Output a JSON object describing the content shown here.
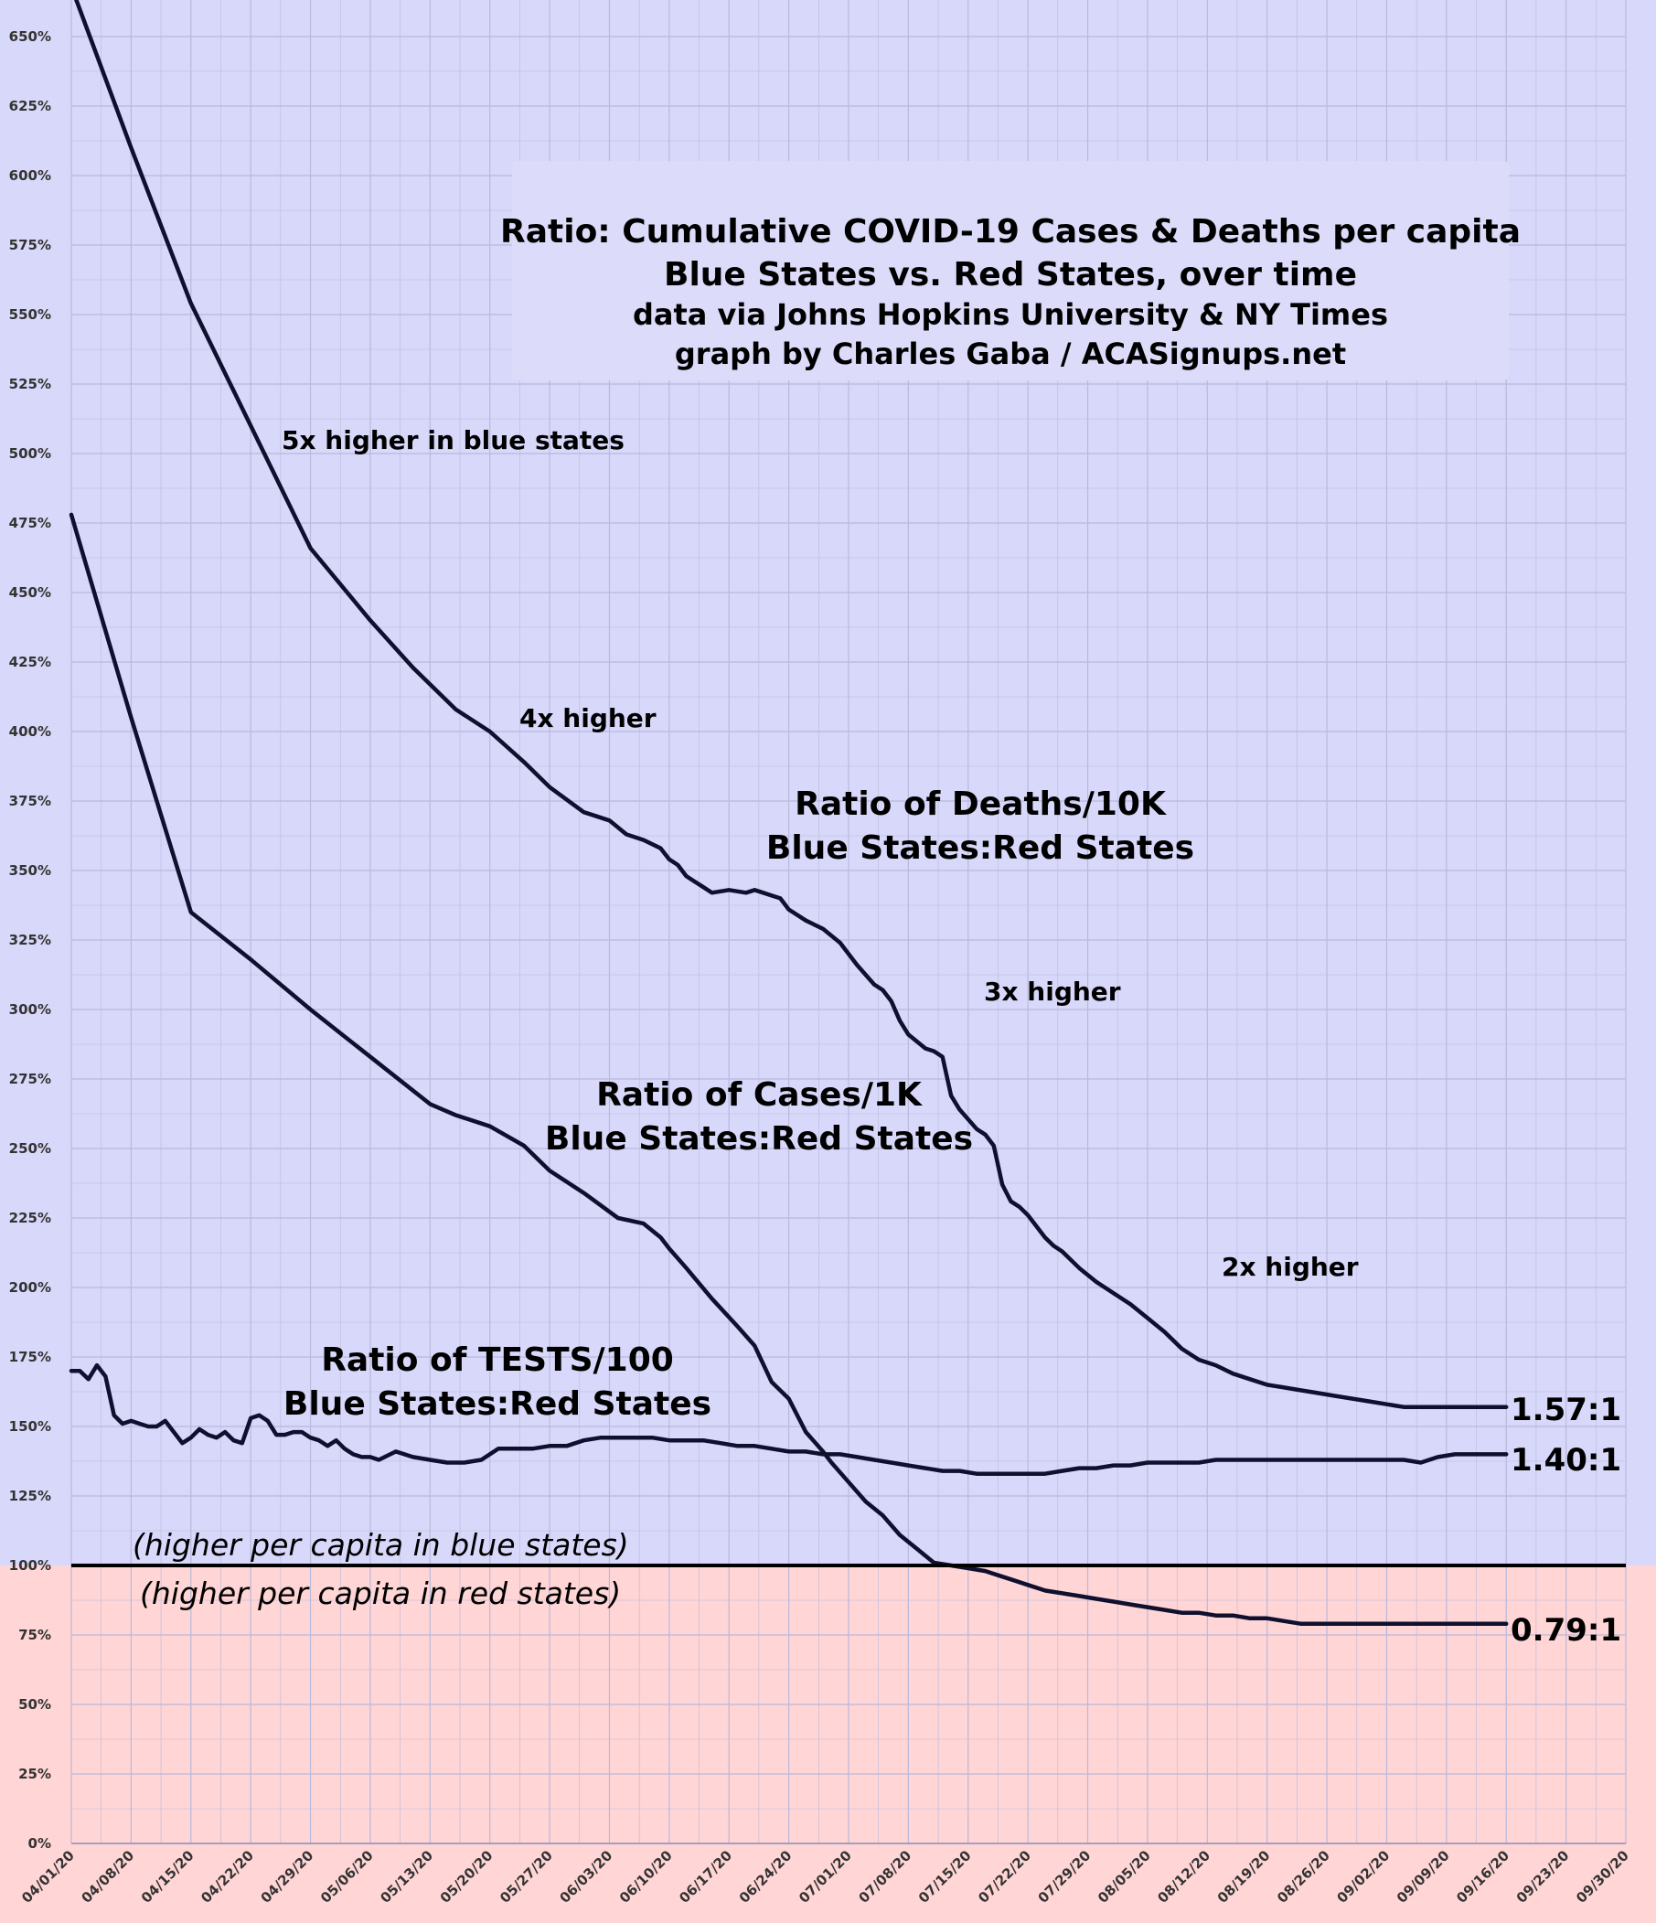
{
  "chart_data": {
    "type": "line",
    "title_lines": [
      "Ratio: Cumulative COVID-19 Cases & Deaths per capita",
      "Blue States vs. Red States, over time",
      "data via Johns Hopkins University & NY Times",
      "graph by Charles Gaba / ACASignups.net"
    ],
    "ylim": [
      0,
      660
    ],
    "xlim": [
      0,
      182
    ],
    "y_ticks": [
      0,
      25,
      50,
      75,
      100,
      125,
      150,
      175,
      200,
      225,
      250,
      275,
      300,
      325,
      350,
      375,
      400,
      425,
      450,
      475,
      500,
      525,
      550,
      575,
      600,
      625,
      650
    ],
    "y_tick_labels": [
      "0%",
      "25%",
      "50%",
      "75%",
      "100%",
      "125%",
      "150%",
      "175%",
      "200%",
      "225%",
      "250%",
      "275%",
      "300%",
      "325%",
      "350%",
      "375%",
      "400%",
      "425%",
      "450%",
      "475%",
      "500%",
      "525%",
      "550%",
      "575%",
      "600%",
      "625%",
      "650%"
    ],
    "x_ticks": [
      0,
      7,
      14,
      21,
      28,
      35,
      42,
      49,
      56,
      63,
      70,
      77,
      84,
      91,
      98,
      105,
      112,
      119,
      126,
      133,
      140,
      147,
      154,
      161,
      168,
      175,
      182
    ],
    "x_tick_labels": [
      "04/01/20",
      "04/08/20",
      "04/15/20",
      "04/22/20",
      "04/29/20",
      "05/06/20",
      "05/13/20",
      "05/20/20",
      "05/27/20",
      "06/03/20",
      "06/10/20",
      "06/17/20",
      "06/24/20",
      "07/01/20",
      "07/08/20",
      "07/15/20",
      "07/22/20",
      "07/29/20",
      "08/05/20",
      "08/12/20",
      "08/19/20",
      "08/26/20",
      "09/02/20",
      "09/09/20",
      "09/16/20",
      "09/23/20",
      "09/30/20"
    ],
    "baseline": 100,
    "region_labels": {
      "above": "(higher per capita in blue states)",
      "below": "(higher per capita in red states)"
    },
    "series": [
      {
        "name": "Ratio of Deaths/10K Blue States:Red States",
        "label_lines": [
          "Ratio of Deaths/10K",
          "Blue States:Red States"
        ],
        "end_label": "1.57:1",
        "x": [
          0,
          7,
          14,
          21,
          28,
          35,
          40,
          45,
          49,
          53,
          56,
          60,
          61,
          63,
          65,
          67,
          69,
          70,
          71,
          72,
          73,
          74,
          75,
          77,
          79,
          80,
          81,
          82,
          83,
          84,
          86,
          88,
          90,
          92,
          94,
          95,
          96,
          97,
          98,
          100,
          101,
          102,
          103,
          104,
          106,
          107,
          108,
          109,
          110,
          111,
          112,
          113,
          114,
          115,
          116,
          118,
          120,
          122,
          124,
          126,
          128,
          130,
          132,
          134,
          136,
          138,
          140,
          142,
          144,
          146,
          148,
          150,
          152,
          154,
          156,
          158,
          160,
          162,
          164,
          166,
          168
        ],
        "values": [
          668,
          610,
          554,
          510,
          466,
          440,
          423,
          408,
          400,
          389,
          380,
          371,
          370,
          368,
          363,
          361,
          358,
          354,
          352,
          348,
          346,
          344,
          342,
          343,
          342,
          343,
          342,
          341,
          340,
          336,
          332,
          329,
          324,
          316,
          309,
          307,
          303,
          296,
          291,
          286,
          285,
          283,
          269,
          264,
          257,
          255,
          251,
          237,
          231,
          229,
          226,
          222,
          218,
          215,
          213,
          207,
          202,
          198,
          194,
          189,
          184,
          178,
          174,
          172,
          169,
          167,
          165,
          164,
          163,
          162,
          161,
          160,
          159,
          158,
          157,
          157,
          157,
          157,
          157,
          157,
          157
        ]
      },
      {
        "name": "Ratio of Cases/1K Blue States:Red States",
        "label_lines": [
          "Ratio of Cases/1K",
          "Blue States:Red States"
        ],
        "end_label": "0.79:1",
        "x": [
          0,
          7,
          14,
          21,
          28,
          35,
          42,
          45,
          49,
          53,
          56,
          60,
          64,
          67,
          69,
          70,
          72,
          75,
          78,
          80,
          82,
          84,
          86,
          88,
          89,
          91,
          93,
          95,
          97,
          99,
          101,
          103,
          105,
          107,
          109,
          110,
          112,
          114,
          116,
          118,
          120,
          122,
          124,
          126,
          128,
          130,
          132,
          134,
          136,
          138,
          140,
          142,
          144,
          146,
          148,
          150,
          152,
          154,
          156,
          158,
          160,
          162,
          164,
          166,
          168
        ],
        "values": [
          478,
          405,
          335,
          318,
          300,
          283,
          266,
          262,
          258,
          251,
          242,
          234,
          225,
          223,
          218,
          214,
          207,
          196,
          186,
          179,
          166,
          160,
          148,
          141,
          137,
          130,
          123,
          118,
          111,
          106,
          101,
          100,
          99,
          98,
          96,
          95,
          93,
          91,
          90,
          89,
          88,
          87,
          86,
          85,
          84,
          83,
          83,
          82,
          82,
          81,
          81,
          80,
          79,
          79,
          79,
          79,
          79,
          79,
          79,
          79,
          79,
          79,
          79,
          79,
          79
        ]
      },
      {
        "name": "Ratio of TESTS/100 Blue States:Red States",
        "label_lines": [
          "Ratio of TESTS/100",
          "Blue States:Red States"
        ],
        "end_label": "1.40:1",
        "x": [
          0,
          1,
          2,
          3,
          4,
          5,
          6,
          7,
          8,
          9,
          10,
          11,
          12,
          13,
          14,
          15,
          16,
          17,
          18,
          19,
          20,
          21,
          22,
          23,
          24,
          25,
          26,
          27,
          28,
          29,
          30,
          31,
          32,
          33,
          34,
          35,
          36,
          38,
          40,
          42,
          44,
          46,
          48,
          50,
          52,
          54,
          56,
          58,
          60,
          62,
          64,
          66,
          68,
          70,
          72,
          74,
          76,
          78,
          80,
          82,
          84,
          86,
          88,
          90,
          92,
          94,
          96,
          98,
          100,
          102,
          104,
          106,
          108,
          110,
          112,
          114,
          116,
          118,
          120,
          122,
          124,
          126,
          128,
          130,
          132,
          134,
          136,
          138,
          140,
          142,
          144,
          146,
          148,
          150,
          152,
          154,
          156,
          158,
          160,
          162,
          164,
          166,
          168
        ],
        "values": [
          170,
          170,
          167,
          172,
          168,
          154,
          151,
          152,
          151,
          150,
          150,
          152,
          148,
          144,
          146,
          149,
          147,
          146,
          148,
          145,
          144,
          153,
          154,
          152,
          147,
          147,
          148,
          148,
          146,
          145,
          143,
          145,
          142,
          140,
          139,
          139,
          138,
          141,
          139,
          138,
          137,
          137,
          138,
          142,
          142,
          142,
          143,
          143,
          145,
          146,
          146,
          146,
          146,
          145,
          145,
          145,
          144,
          143,
          143,
          142,
          141,
          141,
          140,
          140,
          139,
          138,
          137,
          136,
          135,
          134,
          134,
          133,
          133,
          133,
          133,
          133,
          134,
          135,
          135,
          136,
          136,
          137,
          137,
          137,
          137,
          138,
          138,
          138,
          138,
          138,
          138,
          138,
          138,
          138,
          138,
          138,
          138,
          137,
          139,
          140,
          140,
          140,
          140
        ]
      }
    ],
    "annotations": [
      "5x higher in blue states",
      "4x higher",
      "3x higher",
      "2x higher"
    ],
    "colors": {
      "blue_region": "#d8d8fb",
      "red_region": "#ffd5d5",
      "grid": "#b9b9dc",
      "line": "#0f0f2e",
      "title_box": "#dcdcfa"
    }
  }
}
